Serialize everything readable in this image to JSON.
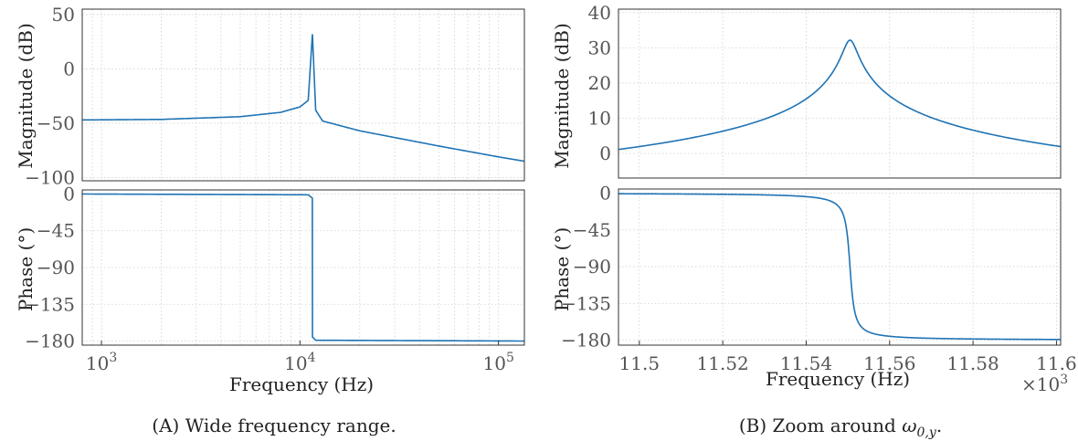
{
  "chart_data": [
    {
      "type": "line",
      "panel": "A-magnitude",
      "ylabel": "Magnitude (dB)",
      "x_scale": "log",
      "xlim": [
        800,
        135000
      ],
      "ylim": [
        -103,
        55
      ],
      "yticks": [
        -100,
        -50,
        0,
        50
      ],
      "ytick_labels": [
        "−100",
        "−50",
        "0",
        "50"
      ],
      "grid": true,
      "series": [
        {
          "x": [
            800,
            2000,
            5000,
            8000,
            10000,
            11000,
            11550,
            12000,
            13000,
            20000,
            50000,
            100000,
            135000
          ],
          "values": [
            -47,
            -46.5,
            -44,
            -40,
            -35,
            -29,
            32,
            -38,
            -48,
            -57,
            -71,
            -81,
            -85
          ]
        }
      ]
    },
    {
      "type": "line",
      "panel": "A-phase",
      "xlabel": "Frequency (Hz)",
      "ylabel": "Phase (°)",
      "x_scale": "log",
      "xlim": [
        800,
        135000
      ],
      "ylim": [
        -185,
        5
      ],
      "yticks": [
        0,
        -45,
        -90,
        -135,
        -180
      ],
      "ytick_labels": [
        "0",
        "−45",
        "−90",
        "−135",
        "−180"
      ],
      "xticks": [
        1000,
        10000,
        100000
      ],
      "xtick_labels": [
        {
          "base": "10",
          "exp": "3"
        },
        {
          "base": "10",
          "exp": "4"
        },
        {
          "base": "10",
          "exp": "5"
        }
      ],
      "grid": true,
      "series": [
        {
          "x": [
            800,
            11000,
            11540,
            11550,
            11560,
            12000,
            135000
          ],
          "values": [
            0,
            -1,
            -5,
            -90,
            -175,
            -179,
            -180
          ]
        }
      ]
    },
    {
      "type": "line",
      "panel": "B-magnitude",
      "ylabel": "Magnitude (dB)",
      "x_scale": "linear",
      "xlim": [
        11.495,
        11.601
      ],
      "ylim": [
        -7,
        41
      ],
      "yticks": [
        0,
        10,
        20,
        30,
        40
      ],
      "ytick_labels": [
        "0",
        "10",
        "20",
        "30",
        "40"
      ],
      "grid": true,
      "series": [
        {
          "name": "",
          "fn": "resonance",
          "f0": 11.5505,
          "g": 0.00155,
          "peak_db": 32.2,
          "floor": 0.001
        }
      ]
    },
    {
      "type": "line",
      "panel": "B-phase",
      "xlabel": "Frequency (Hz)",
      "ylabel": "Phase (°)",
      "x_scale": "linear",
      "xlim": [
        11.495,
        11.601
      ],
      "ylim": [
        -186,
        5
      ],
      "yticks": [
        0,
        -45,
        -90,
        -135,
        -180
      ],
      "ytick_labels": [
        "0",
        "−45",
        "−90",
        "−135",
        "−180"
      ],
      "xticks": [
        11.5,
        11.52,
        11.54,
        11.56,
        11.58,
        11.6
      ],
      "xtick_labels": [
        "11.5",
        "11.52",
        "11.54",
        "11.56",
        "11.58",
        "11.6"
      ],
      "xscale_note": {
        "prefix": "×10",
        "exp": "3"
      },
      "grid": true,
      "series": [
        {
          "name": "",
          "fn": "phase_step",
          "f0": 11.5505,
          "g": 0.0008
        }
      ]
    }
  ],
  "captions": {
    "a": "(A) Wide frequency range.",
    "b_prefix": "(B) Zoom around ",
    "b_symbol": "ω",
    "b_sub": "0,y",
    "b_suffix": "."
  },
  "colors": {
    "curve": "#1f73b4",
    "grid": "#d0d0d0"
  }
}
